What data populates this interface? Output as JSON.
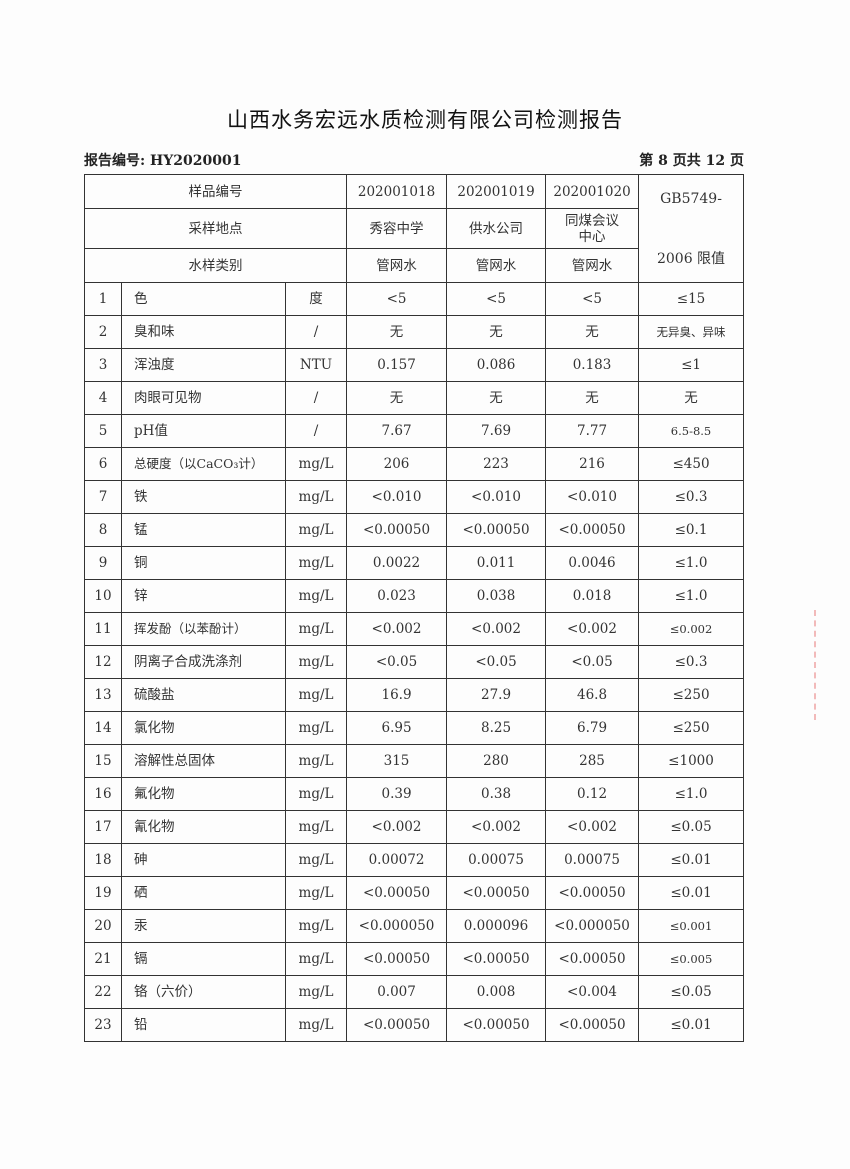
{
  "title": "山西水务宏远水质检测有限公司检测报告",
  "report_no": "报告编号: HY2020001",
  "page_no": "第 8 页共 12 页",
  "header": {
    "sample_id_label": "样品编号",
    "location_label": "采样地点",
    "type_label": "水样类别",
    "standard_line1": "GB5749-",
    "standard_line2": "2006 限值",
    "samples": [
      {
        "id": "202001018",
        "location": "秀容中学",
        "type": "管网水"
      },
      {
        "id": "202001019",
        "location": "供水公司",
        "type": "管网水"
      },
      {
        "id": "202001020",
        "location": "同煤会议中心",
        "type": "管网水"
      }
    ]
  },
  "rows": [
    {
      "no": "1",
      "item": "色",
      "unit": "度",
      "v": [
        "<5",
        "<5",
        "<5"
      ],
      "limit": "≤15"
    },
    {
      "no": "2",
      "item": "臭和味",
      "unit": "/",
      "v": [
        "无",
        "无",
        "无"
      ],
      "limit": "无异臭、异味"
    },
    {
      "no": "3",
      "item": "浑浊度",
      "unit": "NTU",
      "v": [
        "0.157",
        "0.086",
        "0.183"
      ],
      "limit": "≤1"
    },
    {
      "no": "4",
      "item": "肉眼可见物",
      "unit": "/",
      "v": [
        "无",
        "无",
        "无"
      ],
      "limit": "无"
    },
    {
      "no": "5",
      "item": "pH值",
      "unit": "/",
      "v": [
        "7.67",
        "7.69",
        "7.77"
      ],
      "limit": "6.5-8.5"
    },
    {
      "no": "6",
      "item": "总硬度（以CaCO₃计）",
      "unit": "mg/L",
      "v": [
        "206",
        "223",
        "216"
      ],
      "limit": "≤450"
    },
    {
      "no": "7",
      "item": "铁",
      "unit": "mg/L",
      "v": [
        "<0.010",
        "<0.010",
        "<0.010"
      ],
      "limit": "≤0.3"
    },
    {
      "no": "8",
      "item": "锰",
      "unit": "mg/L",
      "v": [
        "<0.00050",
        "<0.00050",
        "<0.00050"
      ],
      "limit": "≤0.1"
    },
    {
      "no": "9",
      "item": "铜",
      "unit": "mg/L",
      "v": [
        "0.0022",
        "0.011",
        "0.0046"
      ],
      "limit": "≤1.0"
    },
    {
      "no": "10",
      "item": "锌",
      "unit": "mg/L",
      "v": [
        "0.023",
        "0.038",
        "0.018"
      ],
      "limit": "≤1.0"
    },
    {
      "no": "11",
      "item": "挥发酚（以苯酚计）",
      "unit": "mg/L",
      "v": [
        "<0.002",
        "<0.002",
        "<0.002"
      ],
      "limit": "≤0.002"
    },
    {
      "no": "12",
      "item": "阴离子合成洗涤剂",
      "unit": "mg/L",
      "v": [
        "<0.05",
        "<0.05",
        "<0.05"
      ],
      "limit": "≤0.3"
    },
    {
      "no": "13",
      "item": "硫酸盐",
      "unit": "mg/L",
      "v": [
        "16.9",
        "27.9",
        "46.8"
      ],
      "limit": "≤250"
    },
    {
      "no": "14",
      "item": "氯化物",
      "unit": "mg/L",
      "v": [
        "6.95",
        "8.25",
        "6.79"
      ],
      "limit": "≤250"
    },
    {
      "no": "15",
      "item": "溶解性总固体",
      "unit": "mg/L",
      "v": [
        "315",
        "280",
        "285"
      ],
      "limit": "≤1000"
    },
    {
      "no": "16",
      "item": "氟化物",
      "unit": "mg/L",
      "v": [
        "0.39",
        "0.38",
        "0.12"
      ],
      "limit": "≤1.0"
    },
    {
      "no": "17",
      "item": "氰化物",
      "unit": "mg/L",
      "v": [
        "<0.002",
        "<0.002",
        "<0.002"
      ],
      "limit": "≤0.05"
    },
    {
      "no": "18",
      "item": "砷",
      "unit": "mg/L",
      "v": [
        "0.00072",
        "0.00075",
        "0.00075"
      ],
      "limit": "≤0.01"
    },
    {
      "no": "19",
      "item": "硒",
      "unit": "mg/L",
      "v": [
        "<0.00050",
        "<0.00050",
        "<0.00050"
      ],
      "limit": "≤0.01"
    },
    {
      "no": "20",
      "item": "汞",
      "unit": "mg/L",
      "v": [
        "<0.000050",
        "0.000096",
        "<0.000050"
      ],
      "limit": "≤0.001"
    },
    {
      "no": "21",
      "item": "镉",
      "unit": "mg/L",
      "v": [
        "<0.00050",
        "<0.00050",
        "<0.00050"
      ],
      "limit": "≤0.005"
    },
    {
      "no": "22",
      "item": "铬（六价）",
      "unit": "mg/L",
      "v": [
        "0.007",
        "0.008",
        "<0.004"
      ],
      "limit": "≤0.05"
    },
    {
      "no": "23",
      "item": "铅",
      "unit": "mg/L",
      "v": [
        "<0.00050",
        "<0.00050",
        "<0.00050"
      ],
      "limit": "≤0.01"
    }
  ]
}
